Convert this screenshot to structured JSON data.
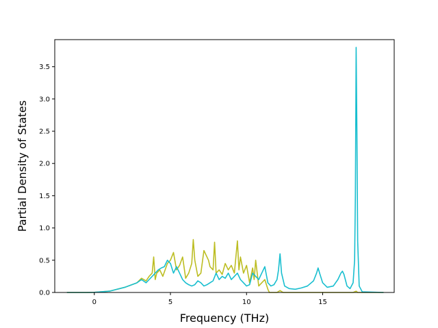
{
  "chart_data": {
    "type": "line",
    "title": "",
    "xlabel": "Frequency (THz)",
    "ylabel": "Partial Density of States",
    "xlim": [
      -2.6,
      19.7
    ],
    "ylim": [
      0,
      3.92
    ],
    "xticks": [
      0,
      5,
      10,
      15
    ],
    "yticks": [
      0.0,
      0.5,
      1.0,
      1.5,
      2.0,
      2.5,
      3.0,
      3.5
    ],
    "grid": false,
    "legend": "none",
    "series": [
      {
        "color": "#bcbd22",
        "x": [
          -1.8,
          -0.5,
          0.0,
          1.0,
          2.0,
          2.8,
          3.1,
          3.4,
          3.6,
          3.8,
          3.9,
          4.0,
          4.1,
          4.3,
          4.5,
          4.8,
          5.0,
          5.2,
          5.4,
          5.6,
          5.8,
          6.0,
          6.2,
          6.4,
          6.5,
          6.6,
          6.8,
          7.0,
          7.2,
          7.4,
          7.5,
          7.6,
          7.8,
          7.9,
          8.0,
          8.2,
          8.4,
          8.6,
          8.8,
          9.0,
          9.2,
          9.4,
          9.5,
          9.6,
          9.8,
          10.0,
          10.2,
          10.4,
          10.5,
          10.6,
          10.8,
          11.0,
          11.2,
          11.4,
          11.5,
          12.0,
          12.2,
          12.4,
          13.0,
          14.0,
          15.0,
          16.0,
          17.0,
          17.2,
          17.3,
          17.5,
          19.0
        ],
        "y": [
          0,
          0,
          0.002,
          0.02,
          0.08,
          0.15,
          0.22,
          0.18,
          0.25,
          0.3,
          0.55,
          0.2,
          0.3,
          0.35,
          0.25,
          0.45,
          0.5,
          0.62,
          0.35,
          0.42,
          0.55,
          0.22,
          0.3,
          0.45,
          0.82,
          0.5,
          0.25,
          0.3,
          0.65,
          0.55,
          0.5,
          0.4,
          0.35,
          0.78,
          0.3,
          0.35,
          0.28,
          0.45,
          0.35,
          0.42,
          0.3,
          0.8,
          0.35,
          0.55,
          0.3,
          0.42,
          0.15,
          0.38,
          0.2,
          0.5,
          0.1,
          0.15,
          0.2,
          0.05,
          0.0,
          0.0,
          0.03,
          0.0,
          0.0,
          0.0,
          0.0,
          0.0,
          0.0,
          0.02,
          0.0,
          0.0,
          0.0
        ]
      },
      {
        "color": "#17becf",
        "x": [
          -1.8,
          -0.5,
          0.0,
          1.0,
          2.0,
          2.8,
          3.1,
          3.4,
          3.6,
          3.8,
          4.0,
          4.2,
          4.4,
          4.6,
          4.8,
          5.0,
          5.2,
          5.4,
          5.6,
          5.8,
          6.0,
          6.2,
          6.4,
          6.6,
          6.8,
          7.0,
          7.2,
          7.4,
          7.6,
          7.8,
          8.0,
          8.2,
          8.4,
          8.6,
          8.8,
          9.0,
          9.2,
          9.4,
          9.6,
          9.8,
          10.0,
          10.2,
          10.4,
          10.6,
          10.8,
          11.0,
          11.2,
          11.4,
          11.6,
          11.8,
          12.0,
          12.1,
          12.2,
          12.3,
          12.5,
          12.8,
          13.2,
          13.6,
          14.0,
          14.4,
          14.6,
          14.7,
          14.8,
          15.0,
          15.3,
          15.7,
          16.0,
          16.2,
          16.3,
          16.4,
          16.6,
          16.8,
          17.0,
          17.1,
          17.15,
          17.2,
          17.25,
          17.3,
          17.4,
          17.6,
          19.0
        ],
        "y": [
          0,
          0,
          0.002,
          0.02,
          0.08,
          0.15,
          0.2,
          0.15,
          0.2,
          0.25,
          0.3,
          0.35,
          0.38,
          0.4,
          0.5,
          0.45,
          0.3,
          0.4,
          0.3,
          0.2,
          0.15,
          0.12,
          0.1,
          0.12,
          0.18,
          0.15,
          0.1,
          0.12,
          0.15,
          0.18,
          0.3,
          0.2,
          0.25,
          0.22,
          0.3,
          0.2,
          0.25,
          0.3,
          0.2,
          0.15,
          0.1,
          0.12,
          0.3,
          0.25,
          0.2,
          0.3,
          0.4,
          0.15,
          0.1,
          0.12,
          0.2,
          0.35,
          0.6,
          0.3,
          0.1,
          0.06,
          0.05,
          0.07,
          0.1,
          0.18,
          0.3,
          0.38,
          0.3,
          0.15,
          0.08,
          0.1,
          0.2,
          0.3,
          0.33,
          0.28,
          0.1,
          0.06,
          0.15,
          0.5,
          1.5,
          3.8,
          2.5,
          0.8,
          0.1,
          0.01,
          0.0
        ]
      }
    ]
  }
}
